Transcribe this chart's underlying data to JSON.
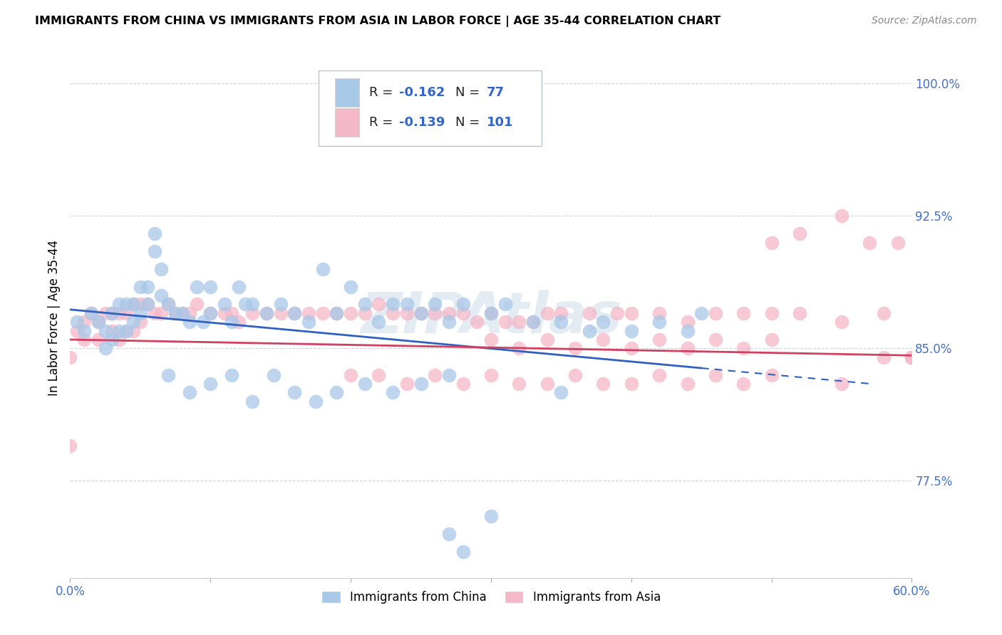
{
  "title": "IMMIGRANTS FROM CHINA VS IMMIGRANTS FROM ASIA IN LABOR FORCE | AGE 35-44 CORRELATION CHART",
  "source": "Source: ZipAtlas.com",
  "ylabel": "In Labor Force | Age 35-44",
  "xlim": [
    0.0,
    0.6
  ],
  "ylim": [
    72.0,
    101.5
  ],
  "china_R": "-0.162",
  "china_N": "77",
  "asia_R": "-0.139",
  "asia_N": "101",
  "china_color": "#a8c8e8",
  "asia_color": "#f4b8c8",
  "china_line_color": "#3060c0",
  "asia_line_color": "#d04060",
  "background_color": "#ffffff",
  "grid_color": "#c8d4e8",
  "watermark": "ZIPAtlas",
  "legend_label_china": "Immigrants from China",
  "legend_label_asia": "Immigrants from Asia",
  "china_line_x0": 0.0,
  "china_line_y0": 87.2,
  "china_line_x1": 0.57,
  "china_line_y1": 83.0,
  "china_line_solid_end": 0.45,
  "asia_line_x0": 0.0,
  "asia_line_y0": 85.5,
  "asia_line_x1": 0.6,
  "asia_line_y1": 84.6,
  "china_x": [
    0.005,
    0.01,
    0.015,
    0.02,
    0.025,
    0.025,
    0.03,
    0.03,
    0.035,
    0.035,
    0.04,
    0.04,
    0.045,
    0.045,
    0.05,
    0.05,
    0.055,
    0.055,
    0.06,
    0.06,
    0.065,
    0.065,
    0.07,
    0.075,
    0.08,
    0.085,
    0.09,
    0.095,
    0.1,
    0.1,
    0.11,
    0.115,
    0.12,
    0.125,
    0.13,
    0.14,
    0.15,
    0.16,
    0.17,
    0.18,
    0.19,
    0.2,
    0.21,
    0.22,
    0.23,
    0.24,
    0.25,
    0.26,
    0.27,
    0.28,
    0.3,
    0.31,
    0.33,
    0.35,
    0.37,
    0.38,
    0.4,
    0.42,
    0.44,
    0.45,
    0.27,
    0.28,
    0.3,
    0.35,
    0.07,
    0.085,
    0.1,
    0.115,
    0.13,
    0.145,
    0.16,
    0.175,
    0.19,
    0.21,
    0.23,
    0.25,
    0.27
  ],
  "china_y": [
    86.5,
    86.0,
    87.0,
    86.5,
    86.0,
    85.0,
    87.0,
    85.5,
    87.5,
    86.0,
    87.5,
    86.0,
    87.5,
    86.5,
    88.5,
    87.0,
    88.5,
    87.5,
    91.5,
    90.5,
    89.5,
    88.0,
    87.5,
    87.0,
    87.0,
    86.5,
    88.5,
    86.5,
    88.5,
    87.0,
    87.5,
    86.5,
    88.5,
    87.5,
    87.5,
    87.0,
    87.5,
    87.0,
    86.5,
    89.5,
    87.0,
    88.5,
    87.5,
    86.5,
    87.5,
    87.5,
    87.0,
    87.5,
    86.5,
    87.5,
    87.0,
    87.5,
    86.5,
    86.5,
    86.0,
    86.5,
    86.0,
    86.5,
    86.0,
    87.0,
    74.5,
    73.5,
    75.5,
    82.5,
    83.5,
    82.5,
    83.0,
    83.5,
    82.0,
    83.5,
    82.5,
    82.0,
    82.5,
    83.0,
    82.5,
    83.0,
    83.5
  ],
  "asia_x": [
    0.0,
    0.0,
    0.005,
    0.01,
    0.01,
    0.015,
    0.02,
    0.02,
    0.025,
    0.03,
    0.03,
    0.035,
    0.035,
    0.04,
    0.04,
    0.045,
    0.045,
    0.05,
    0.05,
    0.055,
    0.06,
    0.065,
    0.07,
    0.075,
    0.08,
    0.085,
    0.09,
    0.1,
    0.11,
    0.115,
    0.12,
    0.13,
    0.14,
    0.15,
    0.16,
    0.17,
    0.18,
    0.19,
    0.2,
    0.21,
    0.22,
    0.23,
    0.24,
    0.25,
    0.26,
    0.27,
    0.28,
    0.29,
    0.3,
    0.31,
    0.32,
    0.33,
    0.34,
    0.35,
    0.37,
    0.39,
    0.4,
    0.42,
    0.44,
    0.46,
    0.48,
    0.5,
    0.52,
    0.55,
    0.58,
    0.6,
    0.2,
    0.22,
    0.24,
    0.26,
    0.28,
    0.3,
    0.32,
    0.34,
    0.36,
    0.38,
    0.4,
    0.42,
    0.44,
    0.46,
    0.48,
    0.5,
    0.55,
    0.58,
    0.6,
    0.5,
    0.52,
    0.55,
    0.57,
    0.59,
    0.3,
    0.32,
    0.34,
    0.36,
    0.38,
    0.4,
    0.42,
    0.44,
    0.46,
    0.48,
    0.5
  ],
  "asia_y": [
    84.5,
    79.5,
    86.0,
    86.5,
    85.5,
    87.0,
    86.5,
    85.5,
    87.0,
    87.0,
    86.0,
    87.0,
    85.5,
    87.0,
    86.0,
    87.5,
    86.0,
    87.5,
    86.5,
    87.5,
    87.0,
    87.0,
    87.5,
    87.0,
    87.0,
    87.0,
    87.5,
    87.0,
    87.0,
    87.0,
    86.5,
    87.0,
    87.0,
    87.0,
    87.0,
    87.0,
    87.0,
    87.0,
    87.0,
    87.0,
    87.5,
    87.0,
    87.0,
    87.0,
    87.0,
    87.0,
    87.0,
    86.5,
    87.0,
    86.5,
    86.5,
    86.5,
    87.0,
    87.0,
    87.0,
    87.0,
    87.0,
    87.0,
    86.5,
    87.0,
    87.0,
    87.0,
    87.0,
    86.5,
    87.0,
    84.5,
    83.5,
    83.5,
    83.0,
    83.5,
    83.0,
    83.5,
    83.0,
    83.0,
    83.5,
    83.0,
    83.0,
    83.5,
    83.0,
    83.5,
    83.0,
    83.5,
    83.0,
    84.5,
    84.5,
    91.0,
    91.5,
    92.5,
    91.0,
    91.0,
    85.5,
    85.0,
    85.5,
    85.0,
    85.5,
    85.0,
    85.5,
    85.0,
    85.5,
    85.0,
    85.5
  ]
}
